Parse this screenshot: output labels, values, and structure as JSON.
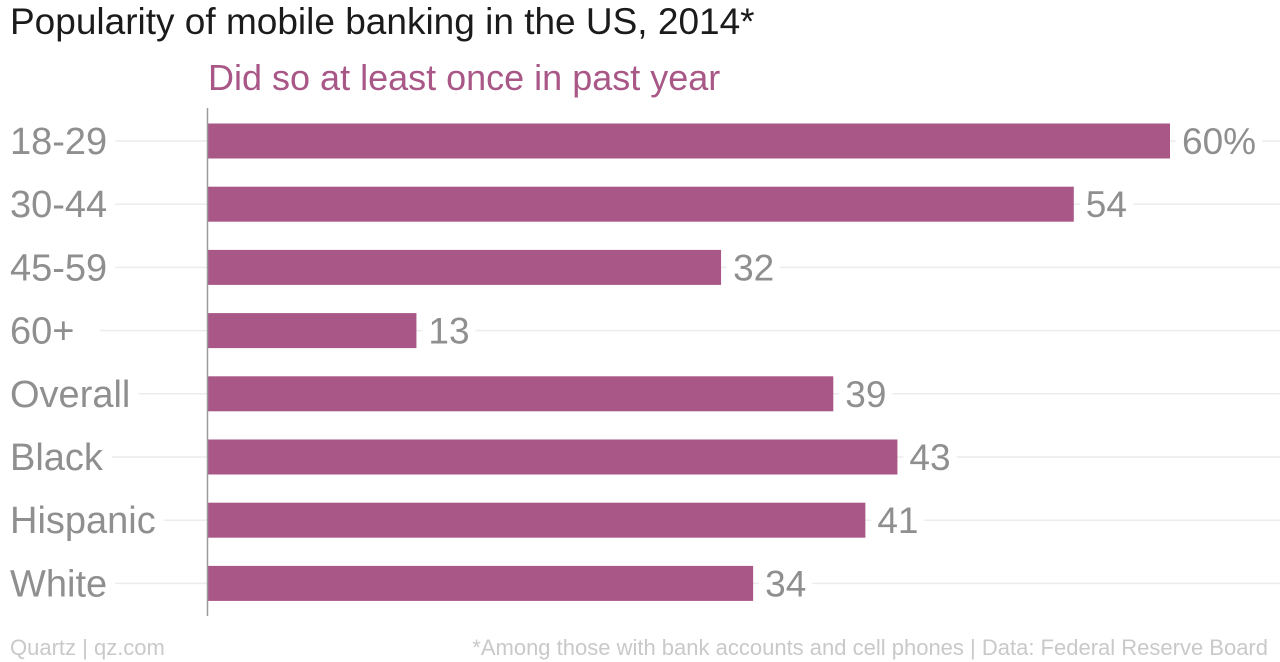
{
  "chart_data": {
    "type": "bar",
    "orientation": "horizontal",
    "title": "Popularity of mobile banking in the US, 2014*",
    "subtitle": "Did so at least once in past year",
    "categories": [
      "18-29",
      "30-44",
      "45-59",
      "60+",
      "Overall",
      "Black",
      "Hispanic",
      "White"
    ],
    "values": [
      60,
      54,
      32,
      13,
      39,
      43,
      41,
      34
    ],
    "value_labels": [
      "60%",
      "54",
      "32",
      "13",
      "39",
      "43",
      "41",
      "34"
    ],
    "xlim": [
      0,
      60
    ],
    "grid": true,
    "legend": "none"
  },
  "footer": {
    "source_left": "Quartz | qz.com",
    "source_right": "*Among those with bank accounts and cell phones | Data: Federal Reserve Board"
  },
  "colors": {
    "bar": "#a85787",
    "subtitle": "#a85787",
    "title": "#1b1b1b",
    "labels": "#8f8f8f",
    "grid": "#ececec",
    "axis": "#9a9a9a",
    "footer": "#c9c9c9"
  }
}
